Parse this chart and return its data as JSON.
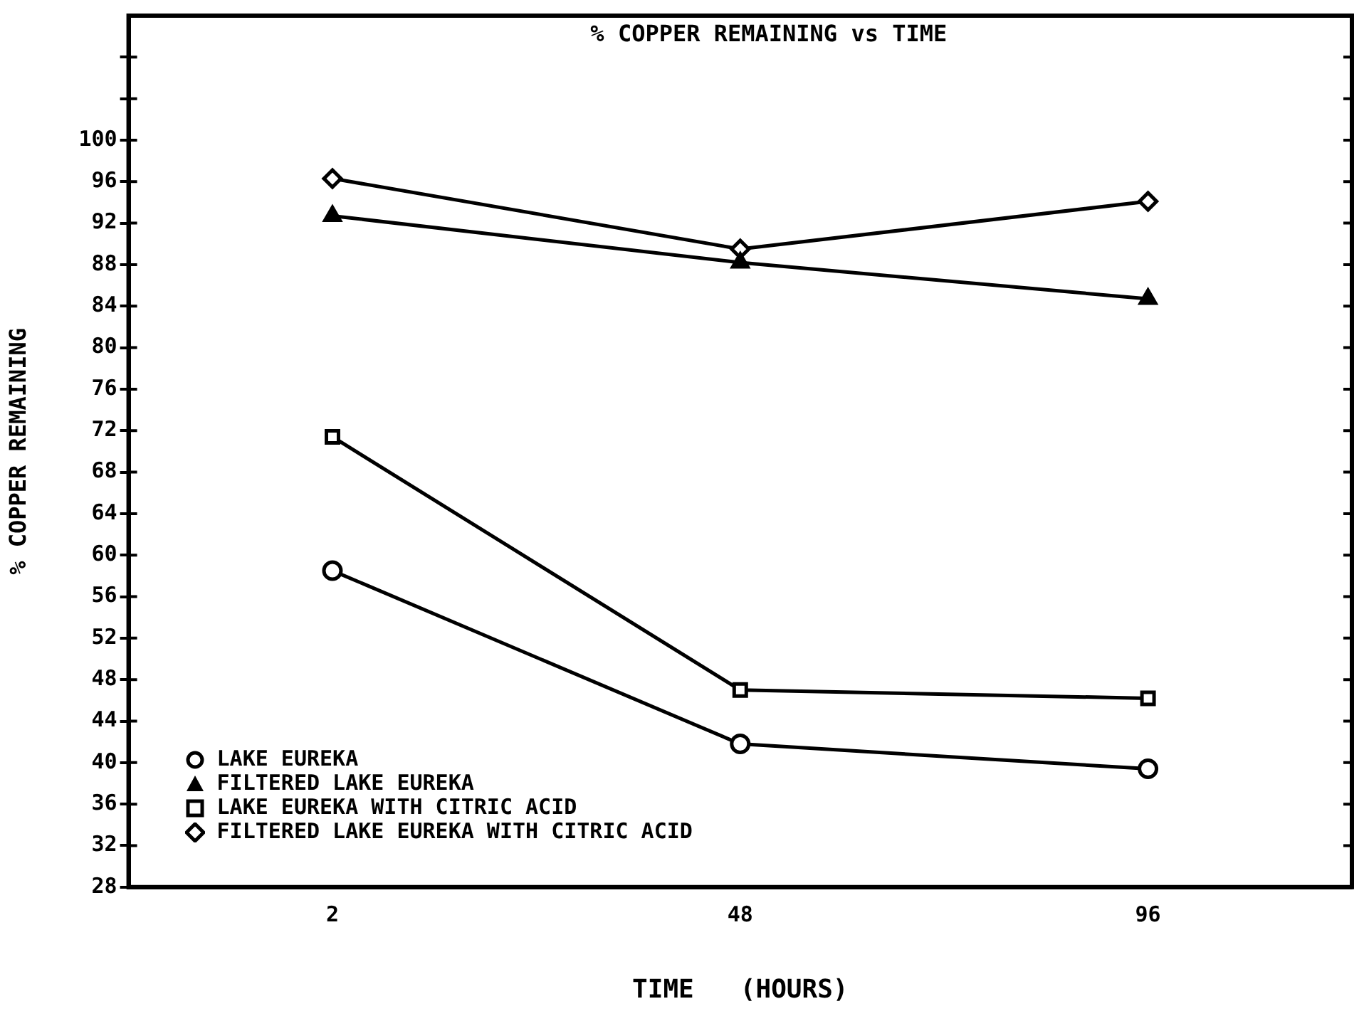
{
  "chart_data": {
    "type": "line",
    "title": "% COPPER REMAINING vs TIME",
    "xlabel": "TIME   (HOURS)",
    "ylabel": "% COPPER REMAINING",
    "categories": [
      "2",
      "48",
      "96"
    ],
    "series": [
      {
        "name": "LAKE EUREKA",
        "color": "#000000",
        "marker": "circle",
        "values": [
          58.5,
          41.8,
          39.4
        ]
      },
      {
        "name": "FILTERED LAKE EUREKA",
        "color": "#000000",
        "marker": "triangle",
        "values": [
          92.7,
          88.2,
          84.7
        ]
      },
      {
        "name": "LAKE EUREKA WITH CITRIC ACID",
        "color": "#000000",
        "marker": "square",
        "values": [
          71.4,
          47.0,
          46.2
        ]
      },
      {
        "name": "FILTERED LAKE EUREKA WITH CITRIC ACID",
        "color": "#000000",
        "marker": "diamond",
        "values": [
          96.3,
          89.5,
          94.1
        ]
      }
    ],
    "ylim": [
      28,
      112
    ],
    "yticks": [
      28,
      32,
      36,
      40,
      44,
      48,
      52,
      56,
      60,
      64,
      68,
      72,
      76,
      80,
      84,
      88,
      92,
      96,
      100,
      {
        "value": 104,
        "label": null
      },
      {
        "value": 108,
        "label": null
      }
    ],
    "legend": "bottom left",
    "line_style": "solid"
  }
}
